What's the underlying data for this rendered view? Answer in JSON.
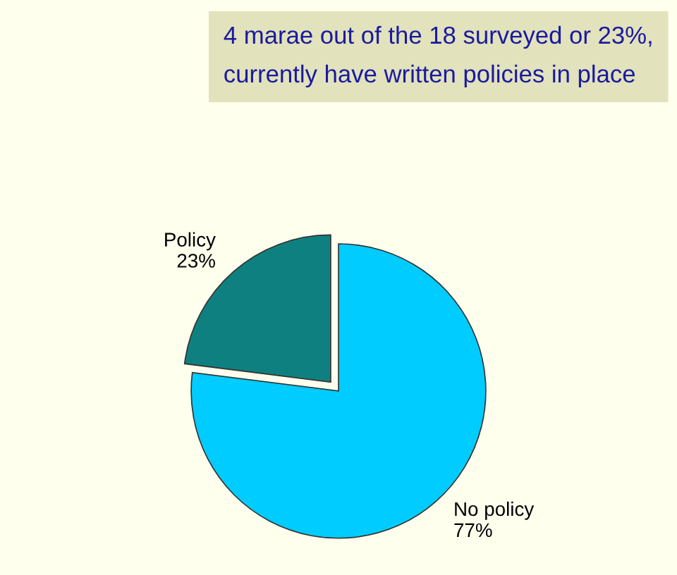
{
  "chart_data": {
    "type": "pie",
    "categories": [
      "Policy",
      "No policy"
    ],
    "values": [
      23,
      77
    ],
    "value_labels": [
      "23%",
      "77%"
    ],
    "colors": [
      "#0f8080",
      "#00ccff"
    ],
    "annotations": [
      "4 marae out of the 18 surveyed or 23%, currently have written policies in place"
    ]
  }
}
